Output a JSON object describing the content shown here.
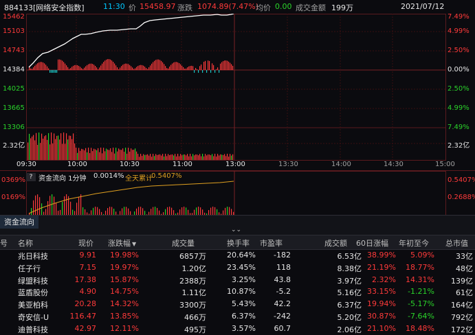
{
  "header": {
    "code_name": "884133[网络安全指数]",
    "time": "11:30",
    "price_label": "价",
    "price": "15458.97",
    "change_label": "涨跌",
    "change": "1074.89(7.47%)",
    "avg_label": "均价",
    "avg": "0.00",
    "amount_label": "成交金额",
    "amount": "199万",
    "date": "2021/07/12"
  },
  "main_chart": {
    "left_axis": [
      "15462",
      "15103",
      "14743",
      "14384",
      "14025",
      "13665",
      "13306"
    ],
    "right_axis": [
      "7.49%",
      "4.99%",
      "2.50%",
      "0.00%",
      "2.50%",
      "4.99%",
      "7.49%"
    ],
    "vol_left": "2.32亿",
    "vol_right": "2.32亿",
    "time_axis": [
      "09:30",
      "10:00",
      "10:30",
      "11:00",
      "13:00",
      "13:30",
      "14:00",
      "14:30",
      "15:00"
    ],
    "colors": {
      "up": "#ff3a3a",
      "down": "#2ad32a",
      "line": "#ffffff",
      "grid": "#3a0f12"
    }
  },
  "flow_panel": {
    "expand_glyph": "?",
    "title": "资金流向 1分钟",
    "value": "0.0014%",
    "total_label": "全天累计",
    "total": "0.5407%",
    "left_axis": [
      "0369%",
      "0169%"
    ],
    "right_axis": [
      "0.5407%",
      "0.2688%"
    ]
  },
  "tabs": {
    "active": "资金流向"
  },
  "collapse_glyph": "⌄⌄",
  "table": {
    "headers": [
      "号",
      "名称",
      "现价",
      "涨跌幅",
      "成交量",
      "换手率",
      "市盈率",
      "成交额",
      "60日涨幅",
      "年初至今",
      "总市值"
    ],
    "rows": [
      [
        "兆日科技",
        "9.91",
        "19.98%",
        "6857万",
        "20.64%",
        "-182",
        "6.53亿",
        "38.99%",
        "5.09%",
        "33亿"
      ],
      [
        "任子行",
        "7.15",
        "19.97%",
        "1.20亿",
        "23.45%",
        "118",
        "8.38亿",
        "21.19%",
        "18.77%",
        "48亿"
      ],
      [
        "绿盟科技",
        "17.38",
        "15.87%",
        "2388万",
        "3.25%",
        "43.8",
        "3.97亿",
        "2.32%",
        "14.31%",
        "139亿"
      ],
      [
        "蓝盾股份",
        "4.90",
        "14.75%",
        "1.11亿",
        "10.87%",
        "-5.2",
        "5.16亿",
        "33.15%",
        "-1.21%",
        "61亿"
      ],
      [
        "美亚柏科",
        "20.28",
        "14.32%",
        "3300万",
        "5.43%",
        "42.2",
        "6.37亿",
        "19.94%",
        "-5.17%",
        "164亿"
      ],
      [
        "奇安信-U",
        "116.47",
        "13.85%",
        "466万",
        "6.37%",
        "-242",
        "5.20亿",
        "30.87%",
        "-7.64%",
        "792亿"
      ],
      [
        "迪普科技",
        "42.97",
        "12.11%",
        "495万",
        "3.57%",
        "60.7",
        "2.06亿",
        "21.10%",
        "18.48%",
        "172亿"
      ]
    ]
  }
}
